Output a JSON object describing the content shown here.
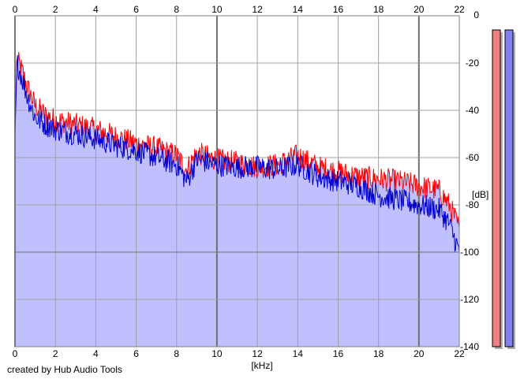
{
  "footer": {
    "credit": "created by Hub Audio Tools"
  },
  "colors": {
    "background": "#ffffff",
    "plot_fill": "#c0c0ff",
    "left_channel": "#ff0000",
    "right_channel": "#0000cc",
    "grid": "#a0a0a0",
    "meter_left": "#f08080",
    "meter_right": "#8080f0"
  },
  "chart_data": {
    "type": "line",
    "title": "",
    "xlabel": "[kHz]",
    "ylabel": "[dB]",
    "xlim": [
      0,
      22
    ],
    "ylim": [
      -140,
      0
    ],
    "x_ticks": [
      "0",
      "2",
      "4",
      "6",
      "8",
      "10",
      "12",
      "14",
      "16",
      "18",
      "20",
      "22"
    ],
    "y_ticks": [
      "0",
      "-20",
      "-40",
      "-60",
      "-80",
      "-100",
      "-120",
      "-140"
    ],
    "grid": true,
    "x_ticks_top": true,
    "legend": "none",
    "series": [
      {
        "color": "#ff0000",
        "x": [
          0,
          0.1,
          0.3,
          0.6,
          1,
          1.5,
          2,
          3,
          4,
          5,
          6,
          7,
          8,
          8.5,
          9,
          10,
          11,
          12,
          13,
          14,
          15,
          16,
          17,
          18,
          19,
          20,
          21,
          21.5,
          22
        ],
        "y": [
          -45,
          -19,
          -22,
          -30,
          -38,
          -42,
          -44,
          -46,
          -48,
          -51,
          -54,
          -56,
          -59,
          -65,
          -58,
          -61,
          -62,
          -64,
          -63,
          -59,
          -64,
          -66,
          -68,
          -69,
          -70,
          -72,
          -74,
          -80,
          -90
        ]
      },
      {
        "color": "#0000cc",
        "x": [
          0,
          0.1,
          0.3,
          0.6,
          1,
          1.5,
          2,
          3,
          4,
          5,
          6,
          7,
          8,
          8.5,
          9,
          10,
          11,
          12,
          13,
          14,
          15,
          16,
          17,
          18,
          19,
          20,
          21,
          21.5,
          22
        ],
        "y": [
          -50,
          -20,
          -25,
          -34,
          -43,
          -46,
          -48,
          -50,
          -52,
          -55,
          -57,
          -60,
          -63,
          -70,
          -61,
          -63,
          -64,
          -64,
          -65,
          -63,
          -68,
          -70,
          -72,
          -76,
          -78,
          -80,
          -82,
          -88,
          -100
        ]
      }
    ],
    "meters": {
      "left_level_db": -6,
      "right_level_db": -6
    }
  }
}
